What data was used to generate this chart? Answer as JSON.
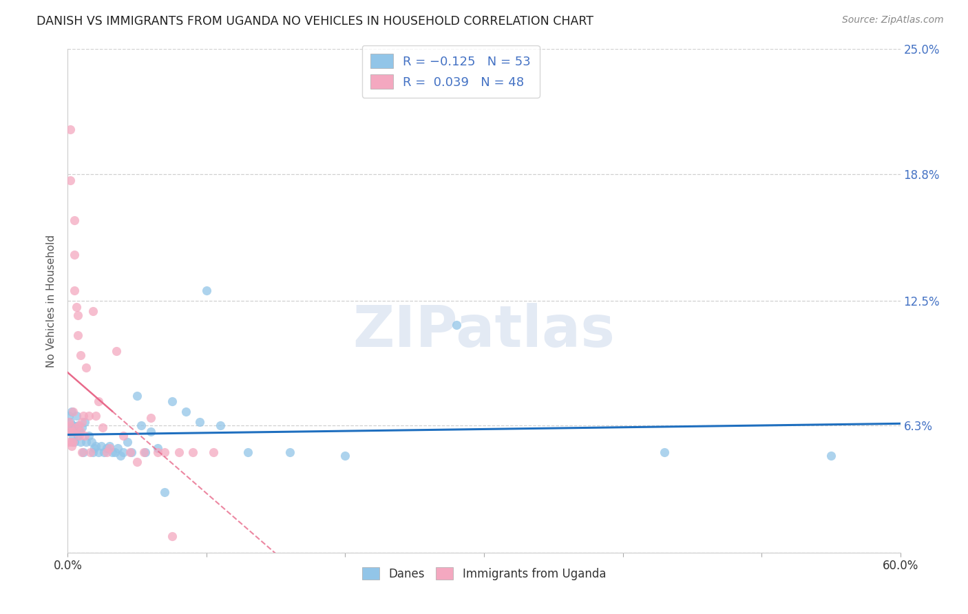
{
  "title": "DANISH VS IMMIGRANTS FROM UGANDA NO VEHICLES IN HOUSEHOLD CORRELATION CHART",
  "source": "Source: ZipAtlas.com",
  "ylabel": "No Vehicles in Household",
  "xlim": [
    0.0,
    0.6
  ],
  "ylim": [
    0.0,
    0.25
  ],
  "xticks": [
    0.0,
    0.1,
    0.2,
    0.3,
    0.4,
    0.5,
    0.6
  ],
  "xticklabels": [
    "0.0%",
    "",
    "",
    "",
    "",
    "",
    "60.0%"
  ],
  "yticks": [
    0.0,
    0.063,
    0.125,
    0.188,
    0.25
  ],
  "yticklabels": [
    "",
    "6.3%",
    "12.5%",
    "18.8%",
    "25.0%"
  ],
  "danes_color": "#92c5e8",
  "uganda_color": "#f4a8c0",
  "danes_line_color": "#1f6fbf",
  "uganda_line_color": "#e8698a",
  "danes_x": [
    0.001,
    0.002,
    0.002,
    0.003,
    0.003,
    0.004,
    0.004,
    0.005,
    0.005,
    0.006,
    0.006,
    0.007,
    0.007,
    0.008,
    0.009,
    0.01,
    0.011,
    0.012,
    0.013,
    0.015,
    0.017,
    0.018,
    0.019,
    0.02,
    0.022,
    0.024,
    0.026,
    0.028,
    0.03,
    0.032,
    0.034,
    0.036,
    0.038,
    0.04,
    0.043,
    0.046,
    0.05,
    0.053,
    0.056,
    0.06,
    0.065,
    0.07,
    0.075,
    0.085,
    0.095,
    0.1,
    0.11,
    0.13,
    0.16,
    0.2,
    0.28,
    0.43,
    0.55
  ],
  "danes_y": [
    0.068,
    0.06,
    0.065,
    0.062,
    0.07,
    0.063,
    0.057,
    0.06,
    0.055,
    0.068,
    0.06,
    0.063,
    0.058,
    0.06,
    0.055,
    0.062,
    0.05,
    0.065,
    0.055,
    0.058,
    0.055,
    0.05,
    0.052,
    0.053,
    0.05,
    0.053,
    0.05,
    0.052,
    0.053,
    0.05,
    0.05,
    0.052,
    0.048,
    0.05,
    0.055,
    0.05,
    0.078,
    0.063,
    0.05,
    0.06,
    0.052,
    0.03,
    0.075,
    0.07,
    0.065,
    0.13,
    0.063,
    0.05,
    0.05,
    0.048,
    0.113,
    0.05,
    0.048
  ],
  "uganda_x": [
    0.001,
    0.001,
    0.001,
    0.002,
    0.002,
    0.002,
    0.003,
    0.003,
    0.003,
    0.004,
    0.004,
    0.004,
    0.005,
    0.005,
    0.005,
    0.006,
    0.006,
    0.007,
    0.007,
    0.008,
    0.008,
    0.009,
    0.009,
    0.01,
    0.01,
    0.011,
    0.012,
    0.013,
    0.015,
    0.016,
    0.018,
    0.02,
    0.022,
    0.025,
    0.028,
    0.03,
    0.035,
    0.04,
    0.045,
    0.05,
    0.055,
    0.06,
    0.065,
    0.07,
    0.075,
    0.08,
    0.09,
    0.105
  ],
  "uganda_y": [
    0.06,
    0.065,
    0.055,
    0.21,
    0.185,
    0.063,
    0.06,
    0.055,
    0.053,
    0.07,
    0.06,
    0.055,
    0.165,
    0.148,
    0.13,
    0.122,
    0.062,
    0.118,
    0.108,
    0.063,
    0.058,
    0.098,
    0.06,
    0.065,
    0.05,
    0.068,
    0.058,
    0.092,
    0.068,
    0.05,
    0.12,
    0.068,
    0.075,
    0.062,
    0.05,
    0.052,
    0.1,
    0.058,
    0.05,
    0.045,
    0.05,
    0.067,
    0.05,
    0.05,
    0.008,
    0.05,
    0.05,
    0.05
  ],
  "watermark": "ZIPatlas",
  "grid_color": "#d0d0d0",
  "background_color": "#ffffff"
}
